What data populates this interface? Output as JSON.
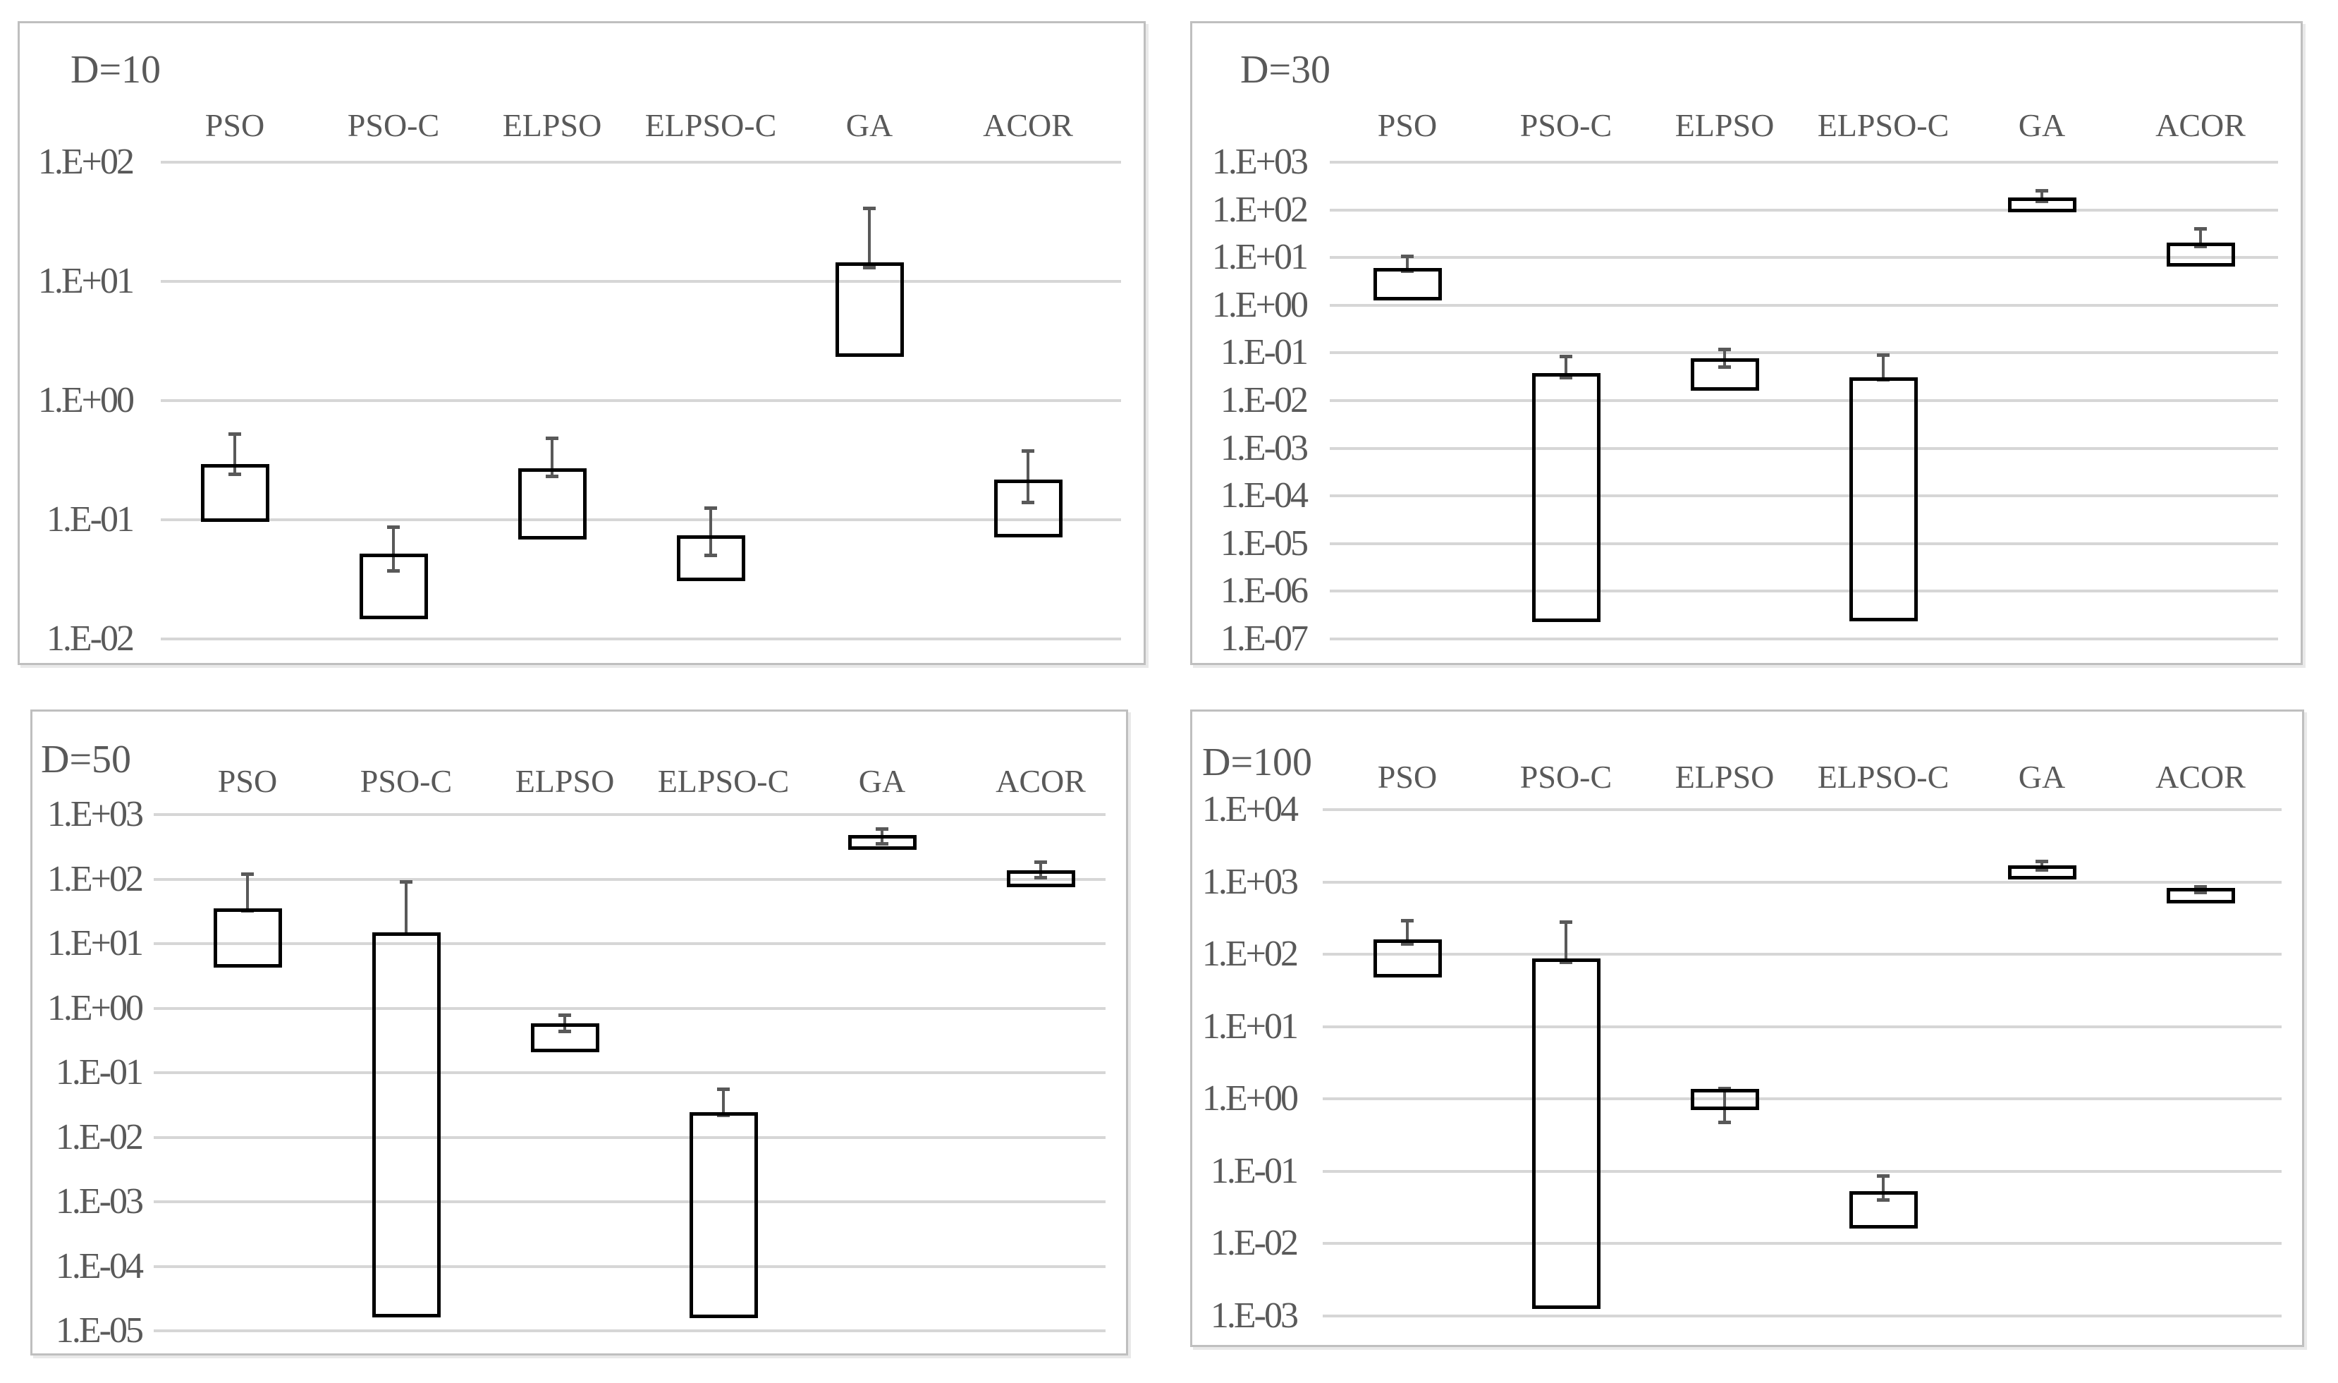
{
  "figure": {
    "background": "#ffffff",
    "text_color": "#595959",
    "grid_color": "#d6d6d6",
    "panel_border_color": "#bfbfbf",
    "box_color": "#000000",
    "whisker_color": "#595959"
  },
  "algorithms": [
    "PSO",
    "PSO-C",
    "ELPSO",
    "ELPSO-C",
    "GA",
    "ACOR"
  ],
  "chart_data": [
    {
      "type": "box",
      "title": "D=10",
      "categories": [
        "PSO",
        "PSO-C",
        "ELPSO",
        "ELPSO-C",
        "GA",
        "ACOR"
      ],
      "grid": true,
      "legend": "none",
      "y_axis": {
        "scale": "log",
        "tick_labels": [
          "1.E+02",
          "1.E+01",
          "1.E+00",
          "1.E-01",
          "1.E-02"
        ],
        "top_exponent": 2,
        "bottom_exponent": -2
      },
      "series": [
        {
          "name": "PSO",
          "box_low": 0.1,
          "box_high": 0.285,
          "whisker_low": 0.24,
          "whisker_high": 0.52
        },
        {
          "name": "PSO-C",
          "box_low": 0.015,
          "box_high": 0.05,
          "whisker_low": 0.037,
          "whisker_high": 0.087
        },
        {
          "name": "ELPSO",
          "box_low": 0.07,
          "box_high": 0.26,
          "whisker_low": 0.23,
          "whisker_high": 0.48
        },
        {
          "name": "ELPSO-C",
          "box_low": 0.032,
          "box_high": 0.072,
          "whisker_low": 0.05,
          "whisker_high": 0.125
        },
        {
          "name": "GA",
          "box_low": 2.4,
          "box_high": 14.0,
          "whisker_low": 13.0,
          "whisker_high": 41.0
        },
        {
          "name": "ACOR",
          "box_low": 0.074,
          "box_high": 0.21,
          "whisker_low": 0.14,
          "whisker_high": 0.38
        }
      ]
    },
    {
      "type": "box",
      "title": "D=30",
      "categories": [
        "PSO",
        "PSO-C",
        "ELPSO",
        "ELPSO-C",
        "GA",
        "ACOR"
      ],
      "grid": true,
      "legend": "none",
      "y_axis": {
        "scale": "log",
        "tick_labels": [
          "1.E+03",
          "1.E+02",
          "1.E+01",
          "1.E+00",
          "1.E-01",
          "1.E-02",
          "1.E-03",
          "1.E-04",
          "1.E-05",
          "1.E-06",
          "1.E-07"
        ],
        "top_exponent": 3,
        "bottom_exponent": -7
      },
      "series": [
        {
          "name": "PSO",
          "box_low": 1.4,
          "box_high": 5.6,
          "whisker_low": 5.2,
          "whisker_high": 10.5
        },
        {
          "name": "PSO-C",
          "box_low": 2.5e-07,
          "box_high": 0.035,
          "whisker_low": 0.03,
          "whisker_high": 0.085
        },
        {
          "name": "ELPSO",
          "box_low": 0.018,
          "box_high": 0.072,
          "whisker_low": 0.05,
          "whisker_high": 0.12
        },
        {
          "name": "ELPSO-C",
          "box_low": 2.5e-07,
          "box_high": 0.028,
          "whisker_low": 0.027,
          "whisker_high": 0.09
        },
        {
          "name": "GA",
          "box_low": 100.0,
          "box_high": 170.0,
          "whisker_low": 150.0,
          "whisker_high": 250.0
        },
        {
          "name": "ACOR",
          "box_low": 7.0,
          "box_high": 19.0,
          "whisker_low": 17.0,
          "whisker_high": 40.0
        }
      ]
    },
    {
      "type": "box",
      "title": "D=50",
      "categories": [
        "PSO",
        "PSO-C",
        "ELPSO",
        "ELPSO-C",
        "GA",
        "ACOR"
      ],
      "grid": true,
      "legend": "none",
      "y_axis": {
        "scale": "log",
        "tick_labels": [
          "1.E+03",
          "1.E+02",
          "1.E+01",
          "1.E+00",
          "1.E-01",
          "1.E-02",
          "1.E-03",
          "1.E-04",
          "1.E-05"
        ],
        "top_exponent": 3,
        "bottom_exponent": -5
      },
      "series": [
        {
          "name": "PSO",
          "box_low": 4.5,
          "box_high": 33.0,
          "whisker_low": 32.0,
          "whisker_high": 120.0
        },
        {
          "name": "PSO-C",
          "box_low": 1.7e-05,
          "box_high": 14.0,
          "whisker_low": 14.0,
          "whisker_high": 90.0
        },
        {
          "name": "ELPSO",
          "box_low": 0.22,
          "box_high": 0.55,
          "whisker_low": 0.44,
          "whisker_high": 0.78
        },
        {
          "name": "ELPSO-C",
          "box_low": 1.7e-05,
          "box_high": 0.023,
          "whisker_low": 0.022,
          "whisker_high": 0.055
        },
        {
          "name": "GA",
          "box_low": 300.0,
          "box_high": 450.0,
          "whisker_low": 350.0,
          "whisker_high": 600.0
        },
        {
          "name": "ACOR",
          "box_low": 80.0,
          "box_high": 130.0,
          "whisker_low": 105.0,
          "whisker_high": 185.0
        }
      ]
    },
    {
      "type": "box",
      "title": "D=100",
      "categories": [
        "PSO",
        "PSO-C",
        "ELPSO",
        "ELPSO-C",
        "GA",
        "ACOR"
      ],
      "grid": true,
      "legend": "none",
      "y_axis": {
        "scale": "log",
        "tick_labels": [
          "1.E+04",
          "1.E+03",
          "1.E+02",
          "1.E+01",
          "1.E+00",
          "1.E-01",
          "1.E-02",
          "1.E-03"
        ],
        "top_exponent": 4,
        "bottom_exponent": -3
      },
      "series": [
        {
          "name": "PSO",
          "box_low": 50.0,
          "box_high": 150.0,
          "whisker_low": 140.0,
          "whisker_high": 290.0
        },
        {
          "name": "PSO-C",
          "box_low": 0.0013,
          "box_high": 82.0,
          "whisker_low": 78.0,
          "whisker_high": 280.0
        },
        {
          "name": "ELPSO",
          "box_low": 0.74,
          "box_high": 1.3,
          "whisker_low": 0.47,
          "whisker_high": 1.4
        },
        {
          "name": "ELPSO-C",
          "box_low": 0.017,
          "box_high": 0.05,
          "whisker_low": 0.04,
          "whisker_high": 0.085
        },
        {
          "name": "GA",
          "box_low": 1150.0,
          "box_high": 1600.0,
          "whisker_low": 1450.0,
          "whisker_high": 1900.0
        },
        {
          "name": "ACOR",
          "box_low": 530.0,
          "box_high": 780.0,
          "whisker_low": 710.0,
          "whisker_high": 850.0
        }
      ]
    }
  ]
}
